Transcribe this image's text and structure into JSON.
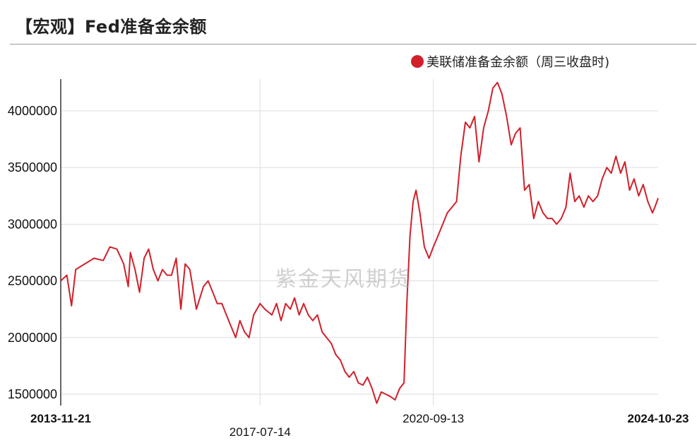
{
  "header": {
    "title": "【宏观】Fed准备金余额"
  },
  "watermark": "紫金天风期货",
  "colors": {
    "series": "#d0202a",
    "grid": "#dddddd",
    "axis": "#333333"
  },
  "chart_data": {
    "type": "line",
    "title": "",
    "xlabel": "",
    "ylabel": "",
    "ylim": [
      1400000,
      4280000
    ],
    "y_ticks": [
      1500000,
      2000000,
      2500000,
      3000000,
      3500000,
      4000000
    ],
    "y_tick_labels": [
      "1500000",
      "2000000",
      "2500000",
      "3000000",
      "3500000",
      "4000000"
    ],
    "x_range": [
      "2013-11-21",
      "2024-10-23"
    ],
    "x_ticks": [
      {
        "label": "2013-11-21",
        "bold": true
      },
      {
        "label": "2017-07-14",
        "bold": false
      },
      {
        "label": "2020-09-13",
        "bold": false
      },
      {
        "label": "2024-10-23",
        "bold": true
      }
    ],
    "grid": true,
    "legend": "top-right",
    "series": [
      {
        "name": "美联储准备金余额（周三收盘时)",
        "color": "#d0202a",
        "points": [
          [
            "2013-11-21",
            2500000
          ],
          [
            "2014-01-01",
            2550000
          ],
          [
            "2014-02-01",
            2280000
          ],
          [
            "2014-03-01",
            2600000
          ],
          [
            "2014-05-01",
            2650000
          ],
          [
            "2014-07-01",
            2700000
          ],
          [
            "2014-09-01",
            2680000
          ],
          [
            "2014-10-15",
            2800000
          ],
          [
            "2014-12-01",
            2780000
          ],
          [
            "2015-01-15",
            2650000
          ],
          [
            "2015-02-15",
            2450000
          ],
          [
            "2015-03-01",
            2750000
          ],
          [
            "2015-04-01",
            2600000
          ],
          [
            "2015-05-01",
            2400000
          ],
          [
            "2015-06-01",
            2700000
          ],
          [
            "2015-07-01",
            2780000
          ],
          [
            "2015-08-01",
            2600000
          ],
          [
            "2015-09-01",
            2500000
          ],
          [
            "2015-10-01",
            2600000
          ],
          [
            "2015-11-01",
            2550000
          ],
          [
            "2015-12-01",
            2550000
          ],
          [
            "2016-01-01",
            2700000
          ],
          [
            "2016-02-01",
            2250000
          ],
          [
            "2016-03-01",
            2650000
          ],
          [
            "2016-04-01",
            2600000
          ],
          [
            "2016-05-15",
            2250000
          ],
          [
            "2016-07-01",
            2450000
          ],
          [
            "2016-08-01",
            2500000
          ],
          [
            "2016-09-01",
            2400000
          ],
          [
            "2016-10-01",
            2300000
          ],
          [
            "2016-11-01",
            2300000
          ],
          [
            "2016-12-01",
            2200000
          ],
          [
            "2017-01-01",
            2100000
          ],
          [
            "2017-02-01",
            2000000
          ],
          [
            "2017-03-01",
            2150000
          ],
          [
            "2017-04-01",
            2050000
          ],
          [
            "2017-05-01",
            2000000
          ],
          [
            "2017-06-01",
            2200000
          ],
          [
            "2017-07-14",
            2300000
          ],
          [
            "2017-08-15",
            2250000
          ],
          [
            "2017-10-01",
            2200000
          ],
          [
            "2017-11-01",
            2300000
          ],
          [
            "2017-12-01",
            2150000
          ],
          [
            "2018-01-01",
            2300000
          ],
          [
            "2018-02-01",
            2250000
          ],
          [
            "2018-03-01",
            2350000
          ],
          [
            "2018-04-01",
            2200000
          ],
          [
            "2018-05-01",
            2300000
          ],
          [
            "2018-06-01",
            2200000
          ],
          [
            "2018-07-01",
            2150000
          ],
          [
            "2018-08-01",
            2200000
          ],
          [
            "2018-09-01",
            2050000
          ],
          [
            "2018-10-01",
            2000000
          ],
          [
            "2018-11-01",
            1950000
          ],
          [
            "2018-12-01",
            1850000
          ],
          [
            "2019-01-01",
            1800000
          ],
          [
            "2019-02-01",
            1700000
          ],
          [
            "2019-03-01",
            1650000
          ],
          [
            "2019-04-01",
            1700000
          ],
          [
            "2019-05-01",
            1600000
          ],
          [
            "2019-06-01",
            1580000
          ],
          [
            "2019-07-01",
            1650000
          ],
          [
            "2019-08-01",
            1550000
          ],
          [
            "2019-09-01",
            1420000
          ],
          [
            "2019-10-01",
            1520000
          ],
          [
            "2019-11-01",
            1500000
          ],
          [
            "2019-12-01",
            1480000
          ],
          [
            "2020-01-01",
            1450000
          ],
          [
            "2020-02-01",
            1550000
          ],
          [
            "2020-03-01",
            1600000
          ],
          [
            "2020-03-20",
            2300000
          ],
          [
            "2020-04-10",
            2900000
          ],
          [
            "2020-05-01",
            3200000
          ],
          [
            "2020-05-20",
            3300000
          ],
          [
            "2020-06-15",
            3100000
          ],
          [
            "2020-07-15",
            2800000
          ],
          [
            "2020-08-15",
            2700000
          ],
          [
            "2020-09-13",
            2800000
          ],
          [
            "2020-10-15",
            2900000
          ],
          [
            "2020-11-15",
            3000000
          ],
          [
            "2020-12-15",
            3100000
          ],
          [
            "2021-01-15",
            3150000
          ],
          [
            "2021-02-15",
            3200000
          ],
          [
            "2021-03-15",
            3600000
          ],
          [
            "2021-04-15",
            3900000
          ],
          [
            "2021-05-15",
            3850000
          ],
          [
            "2021-06-15",
            3950000
          ],
          [
            "2021-07-15",
            3550000
          ],
          [
            "2021-08-15",
            3850000
          ],
          [
            "2021-09-15",
            4000000
          ],
          [
            "2021-10-15",
            4200000
          ],
          [
            "2021-11-15",
            4250000
          ],
          [
            "2021-12-15",
            4150000
          ],
          [
            "2022-01-15",
            3950000
          ],
          [
            "2022-02-15",
            3700000
          ],
          [
            "2022-03-15",
            3800000
          ],
          [
            "2022-04-15",
            3850000
          ],
          [
            "2022-05-15",
            3300000
          ],
          [
            "2022-06-15",
            3350000
          ],
          [
            "2022-07-15",
            3050000
          ],
          [
            "2022-08-15",
            3200000
          ],
          [
            "2022-09-15",
            3100000
          ],
          [
            "2022-10-15",
            3050000
          ],
          [
            "2022-11-15",
            3050000
          ],
          [
            "2022-12-15",
            3000000
          ],
          [
            "2023-01-15",
            3050000
          ],
          [
            "2023-02-15",
            3150000
          ],
          [
            "2023-03-15",
            3450000
          ],
          [
            "2023-04-15",
            3200000
          ],
          [
            "2023-05-15",
            3250000
          ],
          [
            "2023-06-15",
            3150000
          ],
          [
            "2023-07-15",
            3250000
          ],
          [
            "2023-08-15",
            3200000
          ],
          [
            "2023-09-15",
            3250000
          ],
          [
            "2023-10-15",
            3400000
          ],
          [
            "2023-11-15",
            3500000
          ],
          [
            "2023-12-15",
            3450000
          ],
          [
            "2024-01-15",
            3600000
          ],
          [
            "2024-02-15",
            3450000
          ],
          [
            "2024-03-15",
            3550000
          ],
          [
            "2024-04-15",
            3300000
          ],
          [
            "2024-05-15",
            3400000
          ],
          [
            "2024-06-15",
            3250000
          ],
          [
            "2024-07-15",
            3350000
          ],
          [
            "2024-08-15",
            3200000
          ],
          [
            "2024-09-15",
            3100000
          ],
          [
            "2024-10-01",
            3150000
          ],
          [
            "2024-10-23",
            3230000
          ]
        ]
      }
    ]
  }
}
